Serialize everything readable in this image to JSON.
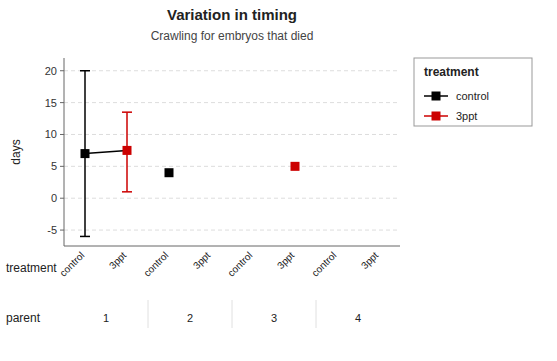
{
  "chart_data": {
    "type": "scatter",
    "title": "Variation in timing",
    "subtitle": "Crawling for embryos that died",
    "ylabel": "days",
    "xlabel": "treatment",
    "group_axis_label": "parent",
    "categories": [
      "control",
      "3ppt",
      "control",
      "3ppt",
      "control",
      "3ppt",
      "control",
      "3ppt"
    ],
    "groups": [
      "1",
      "2",
      "3",
      "4"
    ],
    "series": [
      {
        "name": "control",
        "color": "#000000",
        "marker": "square",
        "values": [
          7.0,
          null,
          4.0,
          null,
          null,
          null,
          null,
          null
        ],
        "ci_low": [
          -6.0,
          null,
          null,
          null,
          null,
          null,
          null,
          null
        ],
        "ci_high": [
          20.0,
          null,
          null,
          null,
          null,
          null,
          null,
          null
        ]
      },
      {
        "name": "3ppt",
        "color": "#cc0000",
        "marker": "square",
        "values": [
          null,
          7.5,
          null,
          null,
          null,
          5.0,
          null,
          null
        ],
        "ci_low": [
          null,
          1.0,
          null,
          null,
          null,
          null,
          null,
          null
        ],
        "ci_high": [
          null,
          13.5,
          null,
          null,
          null,
          null,
          null,
          null
        ]
      },
      {
        "type": "line",
        "color": "#000000",
        "marker": "none",
        "values": [
          7.0,
          7.5,
          null,
          null,
          null,
          null,
          null,
          null
        ]
      }
    ],
    "legend_title": "treatment",
    "legend": "right",
    "ylim": [
      -7.5,
      22
    ],
    "yticks": [
      -5,
      0,
      5,
      10,
      15,
      20
    ],
    "grid": true
  }
}
